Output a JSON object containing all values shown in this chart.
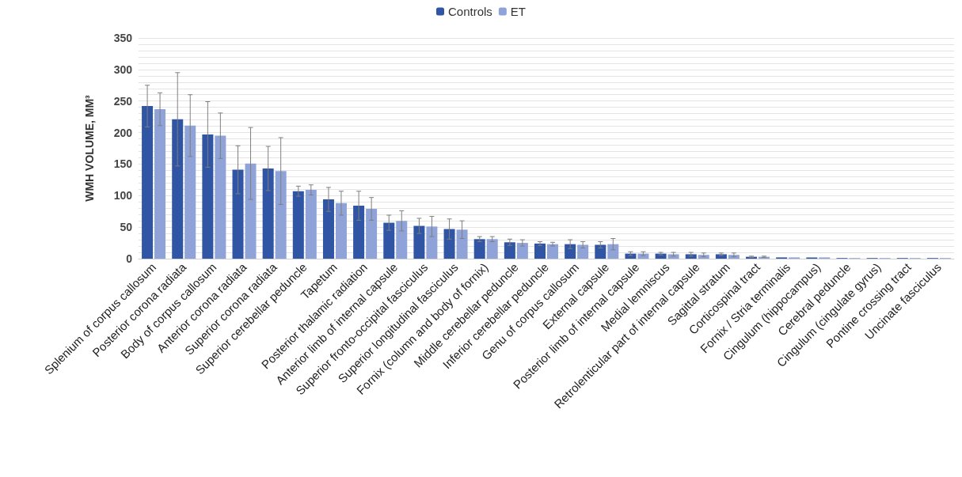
{
  "chart_data": {
    "type": "bar",
    "ylabel": "WMH VOLUME, MM³",
    "categories": [
      "Splenium of corpus callosum",
      "Posterior corona radiata",
      "Body of corpus callosum",
      "Anterior corona radiata",
      "Superior corona radiata",
      "Superior cerebellar peduncle",
      "Tapetum",
      "Posterior thalamic radiation",
      "Anterior limb of internal capsule",
      "Superior fronto-occipital fasciculus",
      "Superior longitudinal fasciculus",
      "Fornix (column and body of fornix)",
      "Middle cerebellar peduncle",
      "Inferior cerebellar peduncle",
      "Genu of corpus callosum",
      "External capsule",
      "Posterior limb of internal capsule",
      "Medial lemniscus",
      "Retrolenticular part of internal capsule",
      "Sagittal stratum",
      "Corticospinal tract",
      "Fornix / Stria terminalis",
      "Cingulum (hippocampus)",
      "Cerebral peduncle",
      "Cingulum (cingulate gyrus)",
      "Pontine crossing tract",
      "Uncinate fasciculus"
    ],
    "series": [
      {
        "name": "Controls",
        "color": "#2f55a4",
        "values": [
          242,
          221,
          197,
          141,
          143,
          107,
          94,
          84,
          57,
          52,
          47,
          31,
          26,
          24,
          23,
          22,
          8,
          8,
          7,
          7,
          3,
          2,
          2,
          1,
          1,
          1,
          1
        ],
        "errors": [
          33,
          74,
          52,
          38,
          35,
          8,
          19,
          23,
          12,
          12,
          16,
          4,
          5,
          3,
          7,
          5,
          3,
          2,
          3,
          2,
          1,
          null,
          null,
          null,
          null,
          null,
          null
        ]
      },
      {
        "name": "ET",
        "color": "#8fa3d9",
        "values": [
          237,
          211,
          195,
          151,
          139,
          109,
          88,
          79,
          60,
          51,
          46,
          31,
          25,
          23,
          22,
          23,
          8,
          7,
          6,
          6,
          3,
          2,
          2,
          1,
          1,
          1,
          1
        ],
        "errors": [
          26,
          49,
          36,
          57,
          53,
          8,
          19,
          18,
          16,
          16,
          14,
          4,
          5,
          3,
          5,
          9,
          3,
          3,
          3,
          3,
          1,
          null,
          null,
          null,
          null,
          null,
          null
        ]
      }
    ],
    "ylim": [
      0,
      350
    ],
    "yticks": [
      0,
      {
        "value": 10,
        "label": null
      },
      {
        "value": 20,
        "label": null
      },
      {
        "value": 30,
        "label": null
      },
      {
        "value": 40,
        "label": null
      },
      50,
      {
        "value": 60,
        "label": null
      },
      {
        "value": 70,
        "label": null
      },
      {
        "value": 80,
        "label": null
      },
      {
        "value": 90,
        "label": null
      },
      100,
      {
        "value": 110,
        "label": null
      },
      {
        "value": 120,
        "label": null
      },
      {
        "value": 130,
        "label": null
      },
      {
        "value": 140,
        "label": null
      },
      150,
      {
        "value": 160,
        "label": null
      },
      {
        "value": 170,
        "label": null
      },
      {
        "value": 180,
        "label": null
      },
      {
        "value": 190,
        "label": null
      },
      200,
      {
        "value": 210,
        "label": null
      },
      {
        "value": 220,
        "label": null
      },
      {
        "value": 230,
        "label": null
      },
      {
        "value": 240,
        "label": null
      },
      250,
      {
        "value": 260,
        "label": null
      },
      {
        "value": 270,
        "label": null
      },
      {
        "value": 280,
        "label": null
      },
      {
        "value": 290,
        "label": null
      },
      300,
      {
        "value": 310,
        "label": null
      },
      {
        "value": 320,
        "label": null
      },
      {
        "value": 330,
        "label": null
      },
      {
        "value": 340,
        "label": null
      },
      350
    ],
    "grid": "y",
    "legend": "top"
  }
}
